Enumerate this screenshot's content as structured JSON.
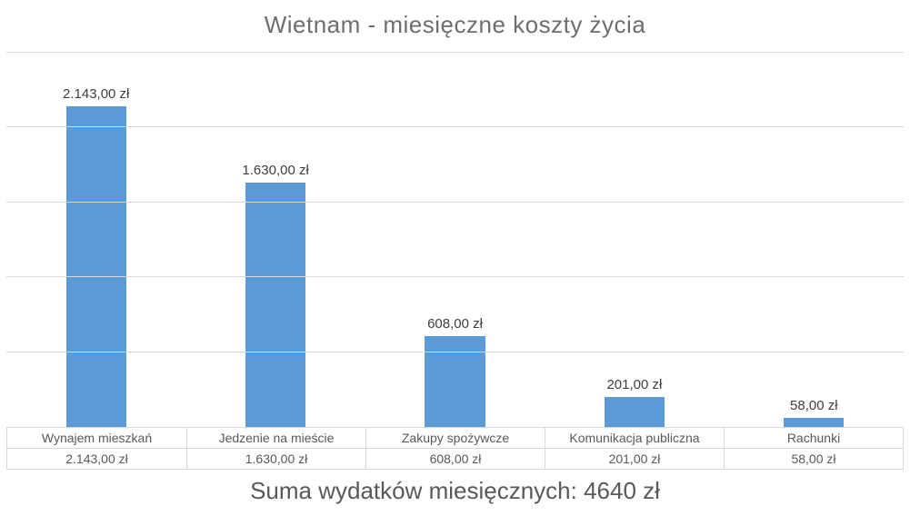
{
  "title": "Wietnam - miesięczne koszty życia",
  "summary_text": "Suma wydatków miesięcznych: 4640 zł",
  "colors": {
    "bar_fill": "#5b9bd5",
    "gridline": "#d9d9d9",
    "title_text": "#6e6e6e",
    "data_label_text": "#404040",
    "table_text": "#595959",
    "summary_text": "#595959",
    "background": "#ffffff"
  },
  "chart_data": {
    "type": "bar",
    "title": "Wietnam - miesięczne koszty życia",
    "categories": [
      "Wynajem mieszkań",
      "Jedzenie na mieście",
      "Zakupy spożywcze",
      "Komunikacja publiczna",
      "Rachunki"
    ],
    "values": [
      2143,
      1630,
      608,
      201,
      58
    ],
    "value_labels": [
      "2.143,00 zł",
      "1.630,00 zł",
      "608,00 zł",
      "201,00 zł",
      "58,00 zł"
    ],
    "xlabel": "",
    "ylabel": "",
    "ylim": [
      0,
      2500
    ],
    "grid_step": 500,
    "grid": true,
    "legend_position": "none",
    "data_table_shown": true,
    "total_label": "Suma wydatków miesięcznych: 4640 zł",
    "total_value": 4640,
    "currency": "zł"
  }
}
